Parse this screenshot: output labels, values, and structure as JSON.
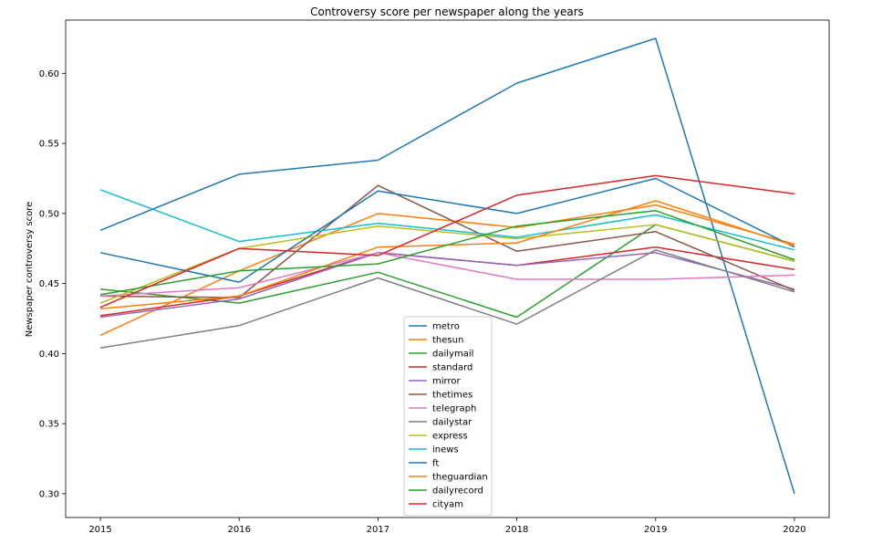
{
  "chart_data": {
    "type": "line",
    "title": "Controversy score per newspaper along the years",
    "xlabel": "",
    "ylabel": "Newspaper controversy score",
    "x": [
      2015,
      2016,
      2017,
      2018,
      2019,
      2020
    ],
    "xlim": [
      2014.75,
      2020.25
    ],
    "ylim": [
      0.283,
      0.638
    ],
    "yticks": [
      0.3,
      0.35,
      0.4,
      0.45,
      0.5,
      0.55,
      0.6
    ],
    "ytick_labels": [
      "0.30",
      "0.35",
      "0.40",
      "0.45",
      "0.50",
      "0.55",
      "0.60"
    ],
    "xtick_labels": [
      "2015",
      "2016",
      "2017",
      "2018",
      "2019",
      "2020"
    ],
    "grid": false,
    "legend_position": "bottom-center",
    "series": [
      {
        "name": "metro",
        "color": "#1f77b4",
        "values": [
          0.488,
          0.528,
          0.538,
          0.593,
          0.625,
          0.3
        ]
      },
      {
        "name": "thesun",
        "color": "#ff7f0e",
        "values": [
          0.413,
          0.459,
          0.5,
          0.49,
          0.506,
          0.478
        ]
      },
      {
        "name": "dailymail",
        "color": "#2ca02c",
        "values": [
          0.446,
          0.436,
          0.458,
          0.426,
          0.492,
          0.466
        ]
      },
      {
        "name": "standard",
        "color": "#d62728",
        "values": [
          0.427,
          0.441,
          0.472,
          0.463,
          0.476,
          0.46
        ]
      },
      {
        "name": "mirror",
        "color": "#9467bd",
        "values": [
          0.426,
          0.439,
          0.472,
          0.463,
          0.472,
          0.446
        ]
      },
      {
        "name": "thetimes",
        "color": "#8c564b",
        "values": [
          0.441,
          0.44,
          0.52,
          0.473,
          0.487,
          0.445
        ]
      },
      {
        "name": "telegraph",
        "color": "#e377c2",
        "values": [
          0.441,
          0.447,
          0.472,
          0.453,
          0.453,
          0.456
        ]
      },
      {
        "name": "dailystar",
        "color": "#7f7f7f",
        "values": [
          0.404,
          0.42,
          0.454,
          0.421,
          0.474,
          0.444
        ]
      },
      {
        "name": "express",
        "color": "#bcbd22",
        "values": [
          0.436,
          0.475,
          0.491,
          0.482,
          0.492,
          0.466
        ]
      },
      {
        "name": "inews",
        "color": "#17becf",
        "values": [
          0.517,
          0.48,
          0.493,
          0.483,
          0.499,
          0.474
        ]
      },
      {
        "name": "ft",
        "color": "#1f77b4",
        "values": [
          0.472,
          0.451,
          0.516,
          0.5,
          0.525,
          0.476
        ]
      },
      {
        "name": "theguardian",
        "color": "#ff7f0e",
        "values": [
          0.432,
          0.441,
          0.476,
          0.479,
          0.509,
          0.477
        ]
      },
      {
        "name": "dailyrecord",
        "color": "#2ca02c",
        "values": [
          0.442,
          0.459,
          0.464,
          0.491,
          0.502,
          0.467
        ]
      },
      {
        "name": "cityam",
        "color": "#d62728",
        "values": [
          0.433,
          0.475,
          0.47,
          0.513,
          0.527,
          0.514
        ]
      }
    ]
  }
}
